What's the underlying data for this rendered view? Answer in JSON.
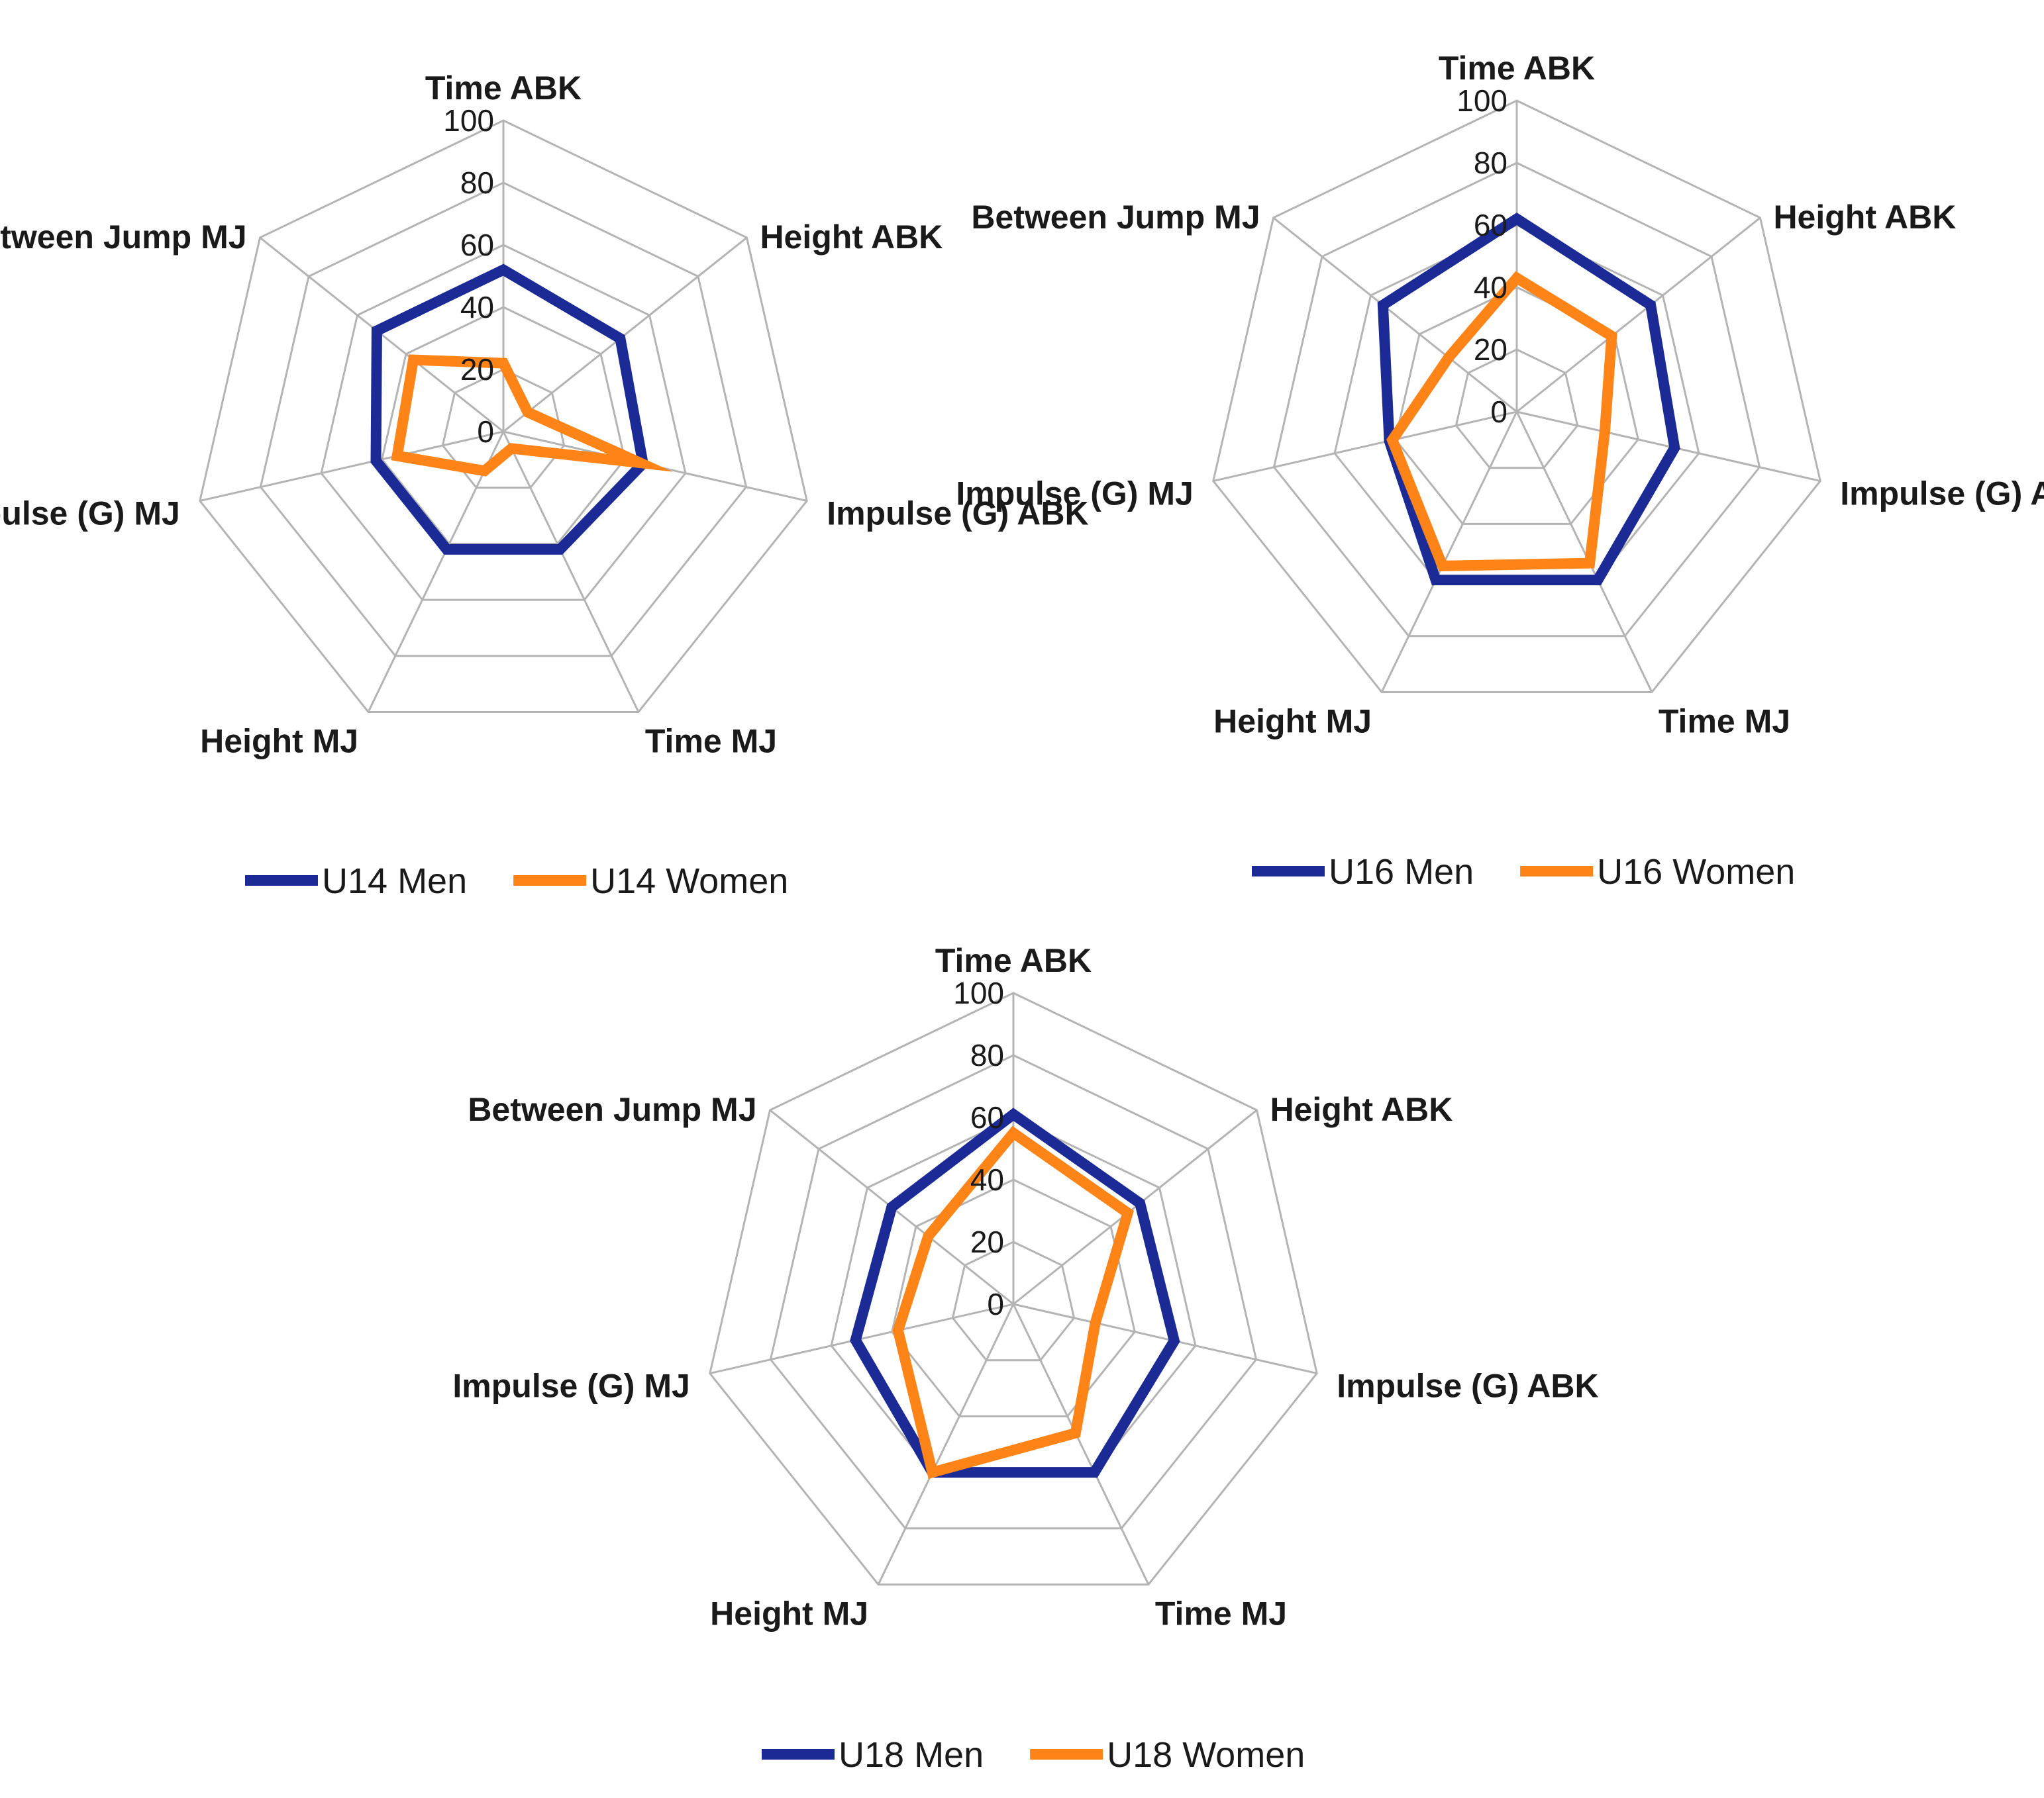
{
  "chart_data": [
    {
      "type": "radar",
      "title": "",
      "axes": [
        "Time ABK",
        "Height ABK",
        "Impulse (G) ABK",
        "Time MJ",
        "Height MJ",
        "Impulse (G) MJ",
        "Between Jump MJ"
      ],
      "ticks": [
        "0",
        "20",
        "40",
        "60",
        "80",
        "100"
      ],
      "rlim": [
        0,
        100
      ],
      "legend_position": "bottom",
      "series": [
        {
          "name": "U14 Men",
          "color": "#1c2a96",
          "values": [
            52,
            48,
            46,
            42,
            42,
            42,
            52
          ]
        },
        {
          "name": "U14 Women",
          "color": "#ff8418",
          "values": [
            22,
            10,
            45,
            6,
            14,
            35,
            37
          ]
        }
      ]
    },
    {
      "type": "radar",
      "title": "",
      "axes": [
        "Time ABK",
        "Height ABK",
        "Impulse (G) ABK",
        "Time MJ",
        "Height MJ",
        "Impulse (G) MJ",
        "Between Jump MJ"
      ],
      "ticks": [
        "0",
        "20",
        "40",
        "60",
        "80",
        "100"
      ],
      "rlim": [
        0,
        100
      ],
      "legend_position": "bottom",
      "series": [
        {
          "name": "U16 Men",
          "color": "#1c2a96",
          "values": [
            62,
            55,
            52,
            60,
            60,
            42,
            55
          ]
        },
        {
          "name": "U16 Women",
          "color": "#ff8418",
          "values": [
            43,
            39,
            29,
            54,
            55,
            41,
            28
          ]
        }
      ]
    },
    {
      "type": "radar",
      "title": "",
      "axes": [
        "Time ABK",
        "Height ABK",
        "Impulse (G) ABK",
        "Time MJ",
        "Height MJ",
        "Impulse (G) MJ",
        "Between Jump MJ"
      ],
      "ticks": [
        "0",
        "20",
        "40",
        "60",
        "80",
        "100"
      ],
      "rlim": [
        0,
        100
      ],
      "legend_position": "bottom",
      "series": [
        {
          "name": "U18 Men",
          "color": "#1c2a96",
          "values": [
            61,
            52,
            53,
            60,
            60,
            52,
            50
          ]
        },
        {
          "name": "U18 Women",
          "color": "#ff8418",
          "values": [
            55,
            47,
            27,
            46,
            60,
            38,
            35
          ]
        }
      ]
    }
  ]
}
